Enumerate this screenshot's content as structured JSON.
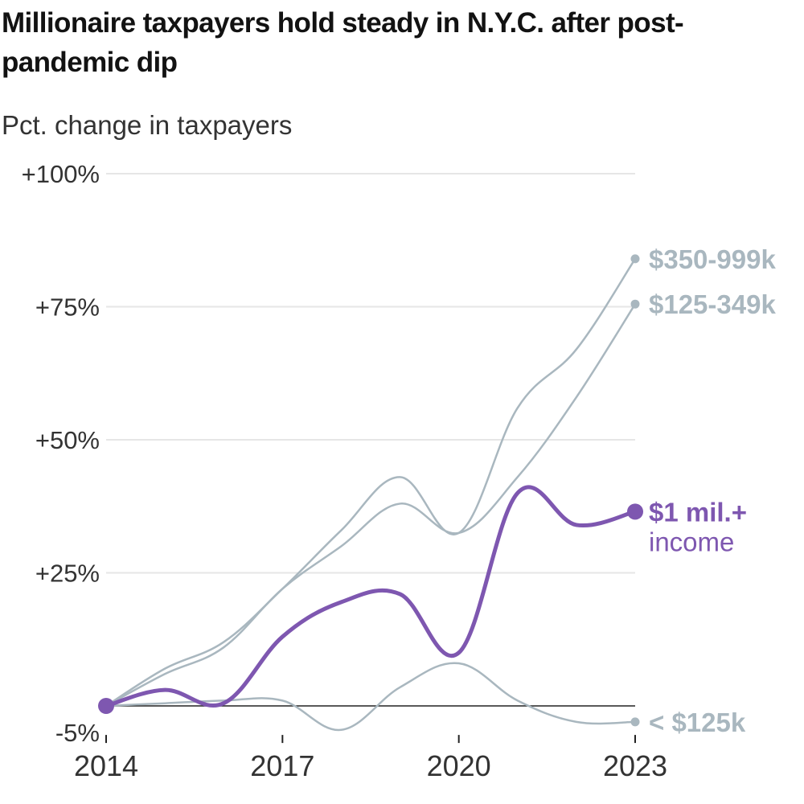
{
  "title": "Millionaire taxpayers hold steady in N.Y.C. after post-pandemic dip",
  "subtitle": "Pct. change in taxpayers",
  "colors": {
    "highlight": "#7e57b0",
    "muted": "#a9b7bf",
    "grid": "#e6e6e6",
    "baseline": "#222222",
    "text": "#333333"
  },
  "chart_data": {
    "type": "line",
    "title": "Millionaire taxpayers hold steady in N.Y.C. after post-pandemic dip",
    "ylabel": "Pct. change in taxpayers",
    "xlabel": "",
    "x": [
      2014,
      2015,
      2016,
      2017,
      2018,
      2019,
      2020,
      2021,
      2022,
      2023
    ],
    "xticks": [
      "2014",
      "2017",
      "2020",
      "2023"
    ],
    "yticks": [
      "+100%",
      "+75%",
      "+50%",
      "+25%",
      "-5%"
    ],
    "ylim": [
      -5,
      100
    ],
    "grid": true,
    "series": [
      {
        "name": "$350-999k",
        "values": [
          0,
          7,
          12,
          22,
          33,
          43,
          32.5,
          56,
          67,
          84
        ]
      },
      {
        "name": "$125-349k",
        "values": [
          0,
          6,
          11,
          22,
          30,
          38,
          32.5,
          43,
          58,
          75.5
        ]
      },
      {
        "name": "< $125k",
        "values": [
          0,
          0.5,
          1,
          1,
          -4.5,
          3.5,
          8,
          1,
          -3,
          -3
        ]
      },
      {
        "name": "$1 mil.+",
        "sublabel": "income",
        "values": [
          0,
          3,
          0.5,
          13,
          19.5,
          21,
          10,
          40,
          34,
          36.5
        ],
        "highlight": true
      }
    ]
  }
}
